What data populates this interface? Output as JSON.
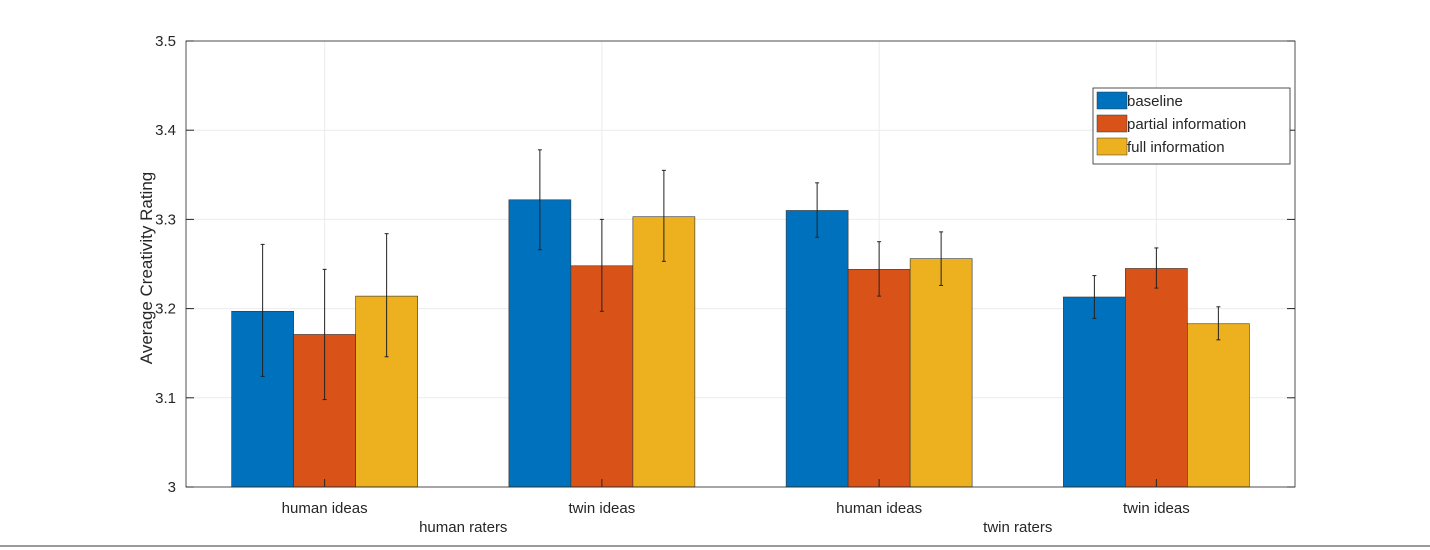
{
  "chart_data": {
    "type": "bar",
    "title": "",
    "xlabel": "",
    "ylabel": "Average Creativity Rating",
    "ylim": [
      3,
      3.5
    ],
    "yticks": [
      "3",
      "3.1",
      "3.2",
      "3.3",
      "3.4",
      "3.5"
    ],
    "grid": true,
    "legend_position": "top-right",
    "categories": [
      "human ideas",
      "twin ideas",
      "human ideas",
      "twin ideas"
    ],
    "group_labels": [
      "human raters",
      "twin raters"
    ],
    "series": [
      {
        "name": "baseline",
        "color": "#0072BD",
        "values": [
          3.197,
          3.322,
          3.31,
          3.213
        ],
        "err_low": [
          3.124,
          3.266,
          3.28,
          3.189
        ],
        "err_high": [
          3.272,
          3.378,
          3.341,
          3.237
        ]
      },
      {
        "name": "partial information",
        "color": "#D95319",
        "values": [
          3.171,
          3.248,
          3.244,
          3.245
        ],
        "err_low": [
          3.098,
          3.197,
          3.214,
          3.223
        ],
        "err_high": [
          3.244,
          3.3,
          3.275,
          3.268
        ]
      },
      {
        "name": "full information",
        "color": "#EDB120",
        "values": [
          3.214,
          3.303,
          3.256,
          3.183
        ],
        "err_low": [
          3.146,
          3.253,
          3.226,
          3.165
        ],
        "err_high": [
          3.284,
          3.355,
          3.286,
          3.202
        ]
      }
    ]
  }
}
